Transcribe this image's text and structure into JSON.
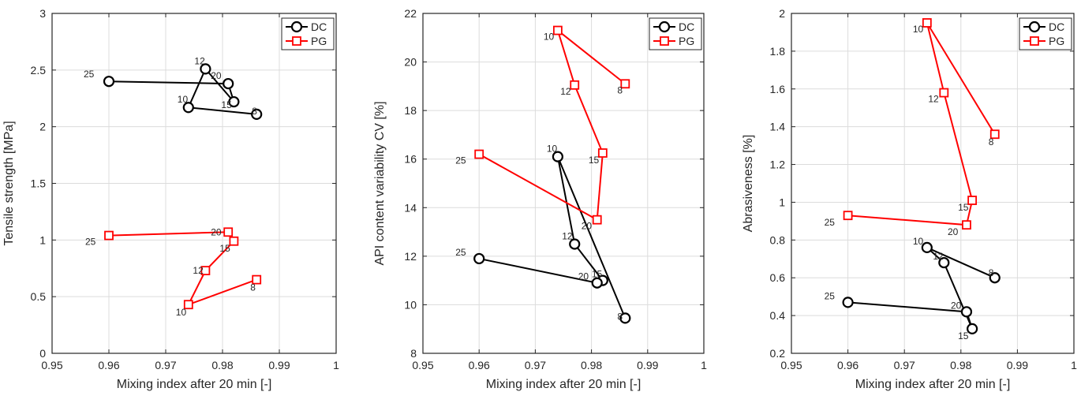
{
  "chart_data": [
    {
      "type": "line",
      "xlabel": "Mixing index after 20 min [-]",
      "ylabel": "Tensile strength [MPa]",
      "xlim": [
        0.95,
        1.0
      ],
      "ylim": [
        0,
        3
      ],
      "xticks": [
        "0.95",
        "0.96",
        "0.97",
        "0.98",
        "0.99",
        "1"
      ],
      "yticks": [
        "0",
        "0.5",
        "1",
        "1.5",
        "2",
        "2.5",
        "3"
      ],
      "grid": true,
      "legend": "top-right",
      "series": [
        {
          "name": "DC",
          "color": "#000000",
          "marker": "circle",
          "points": [
            {
              "x": 0.986,
              "y": 2.11,
              "label": "8"
            },
            {
              "x": 0.974,
              "y": 2.17,
              "label": "10"
            },
            {
              "x": 0.977,
              "y": 2.51,
              "label": "12"
            },
            {
              "x": 0.982,
              "y": 2.22,
              "label": "15"
            },
            {
              "x": 0.981,
              "y": 2.38,
              "label": "20"
            },
            {
              "x": 0.96,
              "y": 2.4,
              "label": "25"
            }
          ]
        },
        {
          "name": "PG",
          "color": "#ff0000",
          "marker": "square",
          "points": [
            {
              "x": 0.986,
              "y": 0.65,
              "label": "8"
            },
            {
              "x": 0.974,
              "y": 0.43,
              "label": "10"
            },
            {
              "x": 0.977,
              "y": 0.73,
              "label": "12"
            },
            {
              "x": 0.982,
              "y": 0.99,
              "label": "15"
            },
            {
              "x": 0.981,
              "y": 1.07,
              "label": "20"
            },
            {
              "x": 0.96,
              "y": 1.04,
              "label": "25"
            }
          ]
        }
      ]
    },
    {
      "type": "line",
      "xlabel": "Mixing index after 20 min [-]",
      "ylabel": "API content variability CV [%]",
      "xlim": [
        0.95,
        1.0
      ],
      "ylim": [
        8,
        22
      ],
      "xticks": [
        "0.95",
        "0.96",
        "0.97",
        "0.98",
        "0.99",
        "1"
      ],
      "yticks": [
        "8",
        "10",
        "12",
        "14",
        "16",
        "18",
        "20",
        "22"
      ],
      "grid": true,
      "legend": "top-right",
      "series": [
        {
          "name": "DC",
          "color": "#000000",
          "marker": "circle",
          "points": [
            {
              "x": 0.986,
              "y": 9.45,
              "label": "8"
            },
            {
              "x": 0.974,
              "y": 16.1,
              "label": "10"
            },
            {
              "x": 0.977,
              "y": 12.5,
              "label": "12"
            },
            {
              "x": 0.982,
              "y": 11.0,
              "label": "15"
            },
            {
              "x": 0.981,
              "y": 10.9,
              "label": "20"
            },
            {
              "x": 0.96,
              "y": 11.9,
              "label": "25"
            }
          ]
        },
        {
          "name": "PG",
          "color": "#ff0000",
          "marker": "square",
          "points": [
            {
              "x": 0.986,
              "y": 19.1,
              "label": "8"
            },
            {
              "x": 0.974,
              "y": 21.3,
              "label": "10"
            },
            {
              "x": 0.977,
              "y": 19.05,
              "label": "12"
            },
            {
              "x": 0.982,
              "y": 16.25,
              "label": "15"
            },
            {
              "x": 0.981,
              "y": 13.5,
              "label": "20"
            },
            {
              "x": 0.96,
              "y": 16.2,
              "label": "25"
            }
          ]
        }
      ]
    },
    {
      "type": "line",
      "xlabel": "Mixing index after 20 min [-]",
      "ylabel": "Abrasiveness [%]",
      "xlim": [
        0.95,
        1.0
      ],
      "ylim": [
        0.2,
        2.0
      ],
      "xticks": [
        "0.95",
        "0.96",
        "0.97",
        "0.98",
        "0.99",
        "1"
      ],
      "yticks": [
        "0.2",
        "0.4",
        "0.6",
        "0.8",
        "1",
        "1.2",
        "1.4",
        "1.6",
        "1.8",
        "2"
      ],
      "grid": true,
      "legend": "top-right",
      "series": [
        {
          "name": "DC",
          "color": "#000000",
          "marker": "circle",
          "points": [
            {
              "x": 0.986,
              "y": 0.6,
              "label": "8"
            },
            {
              "x": 0.974,
              "y": 0.76,
              "label": "10"
            },
            {
              "x": 0.977,
              "y": 0.68,
              "label": "12"
            },
            {
              "x": 0.982,
              "y": 0.33,
              "label": "15"
            },
            {
              "x": 0.981,
              "y": 0.42,
              "label": "20"
            },
            {
              "x": 0.96,
              "y": 0.47,
              "label": "25"
            }
          ]
        },
        {
          "name": "PG",
          "color": "#ff0000",
          "marker": "square",
          "points": [
            {
              "x": 0.986,
              "y": 1.36,
              "label": "8"
            },
            {
              "x": 0.974,
              "y": 1.95,
              "label": "10"
            },
            {
              "x": 0.977,
              "y": 1.58,
              "label": "12"
            },
            {
              "x": 0.982,
              "y": 1.01,
              "label": "15"
            },
            {
              "x": 0.981,
              "y": 0.88,
              "label": "20"
            },
            {
              "x": 0.96,
              "y": 0.93,
              "label": "25"
            }
          ]
        }
      ]
    }
  ]
}
